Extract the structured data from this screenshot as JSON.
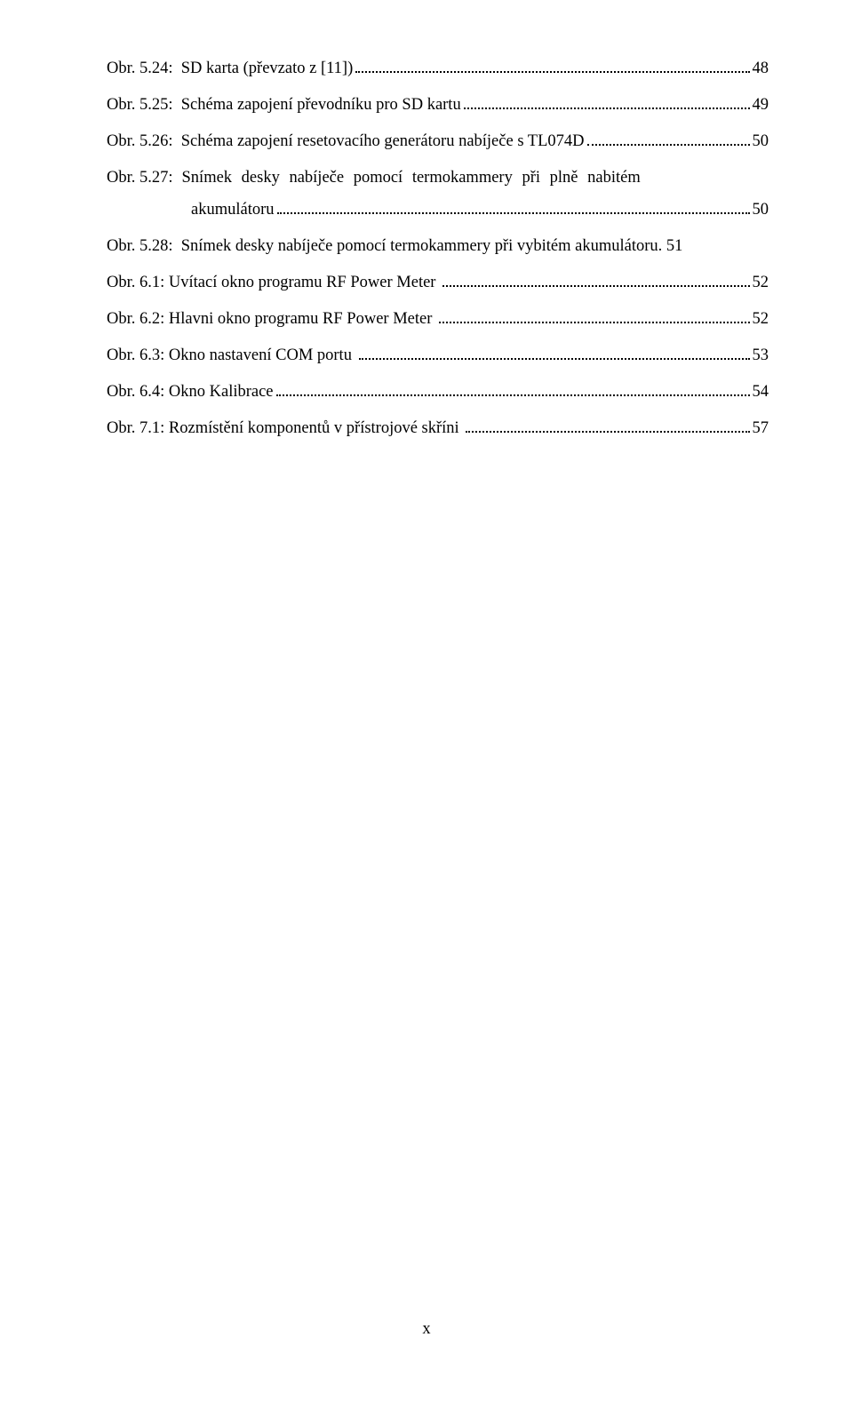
{
  "entries": [
    {
      "label": "Obr. 5.24:",
      "desc": "SD karta (převzato z [11])",
      "page": "48",
      "gap1": "  ",
      "gap2": ""
    },
    {
      "label": "Obr. 5.25:",
      "desc": "Schéma zapojení převodníku pro SD kartu",
      "page": "49",
      "gap1": "  ",
      "gap2": ""
    },
    {
      "label": "Obr. 5.26:",
      "desc": "Schéma zapojení resetovacího generátoru nabíječe s TL074D",
      "page": "50",
      "gap1": "  ",
      "gap2": ""
    },
    {
      "label": "Obr. 5.27:",
      "descPart1": "Snímek   desky   nabíječe   pomocí   termokammery   při   plně   nabitém",
      "descPart2": "akumulátoru",
      "page": "50",
      "multiline": true
    },
    {
      "label": "Obr. 5.28:",
      "desc": "Snímek desky nabíječe pomocí termokammery při vybitém akumulátoru",
      "page": "51",
      "gap1": "  ",
      "gap2": ". ",
      "nodots": true
    },
    {
      "label": "Obr. 6.1:",
      "desc": "Uvítací okno programu RF Power Meter",
      "page": "52",
      "gap1": " ",
      "gap2": " "
    },
    {
      "label": "Obr. 6.2:",
      "desc": "Hlavni okno programu RF Power Meter",
      "page": "52",
      "gap1": " ",
      "gap2": " "
    },
    {
      "label": "Obr. 6.3:",
      "desc": "Okno nastavení COM portu",
      "page": "53",
      "gap1": " ",
      "gap2": " "
    },
    {
      "label": "Obr. 6.4:",
      "desc": "Okno Kalibrace",
      "page": "54",
      "gap1": " ",
      "gap2": ""
    },
    {
      "label": "Obr. 7.1:",
      "desc": "Rozmístění komponentů v přístrojové skříni",
      "page": "57",
      "gap1": " ",
      "gap2": " "
    }
  ],
  "footer": "x"
}
